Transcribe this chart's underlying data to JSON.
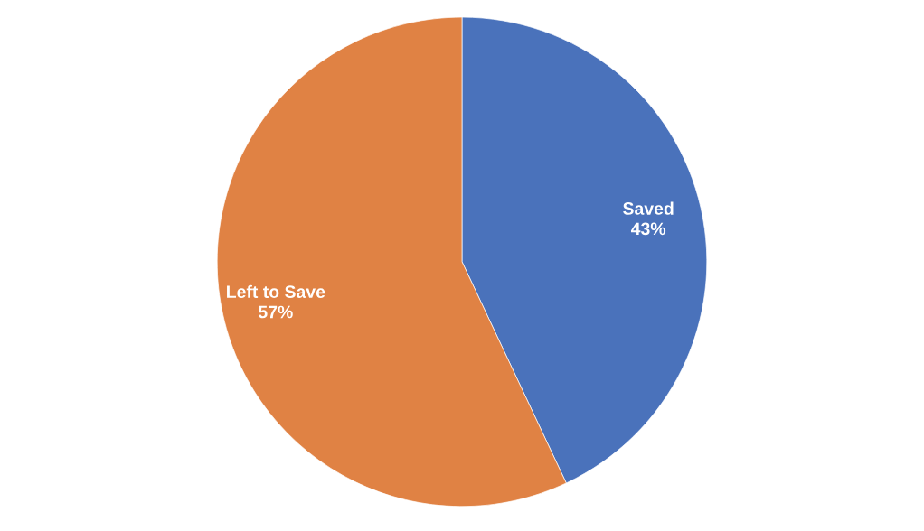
{
  "chart_data": {
    "type": "pie",
    "categories": [
      "Saved",
      "Left to Save"
    ],
    "values": [
      43,
      57
    ],
    "colors": [
      "#4a72bb",
      "#e08244"
    ],
    "value_labels": [
      "43%",
      "57%"
    ]
  }
}
